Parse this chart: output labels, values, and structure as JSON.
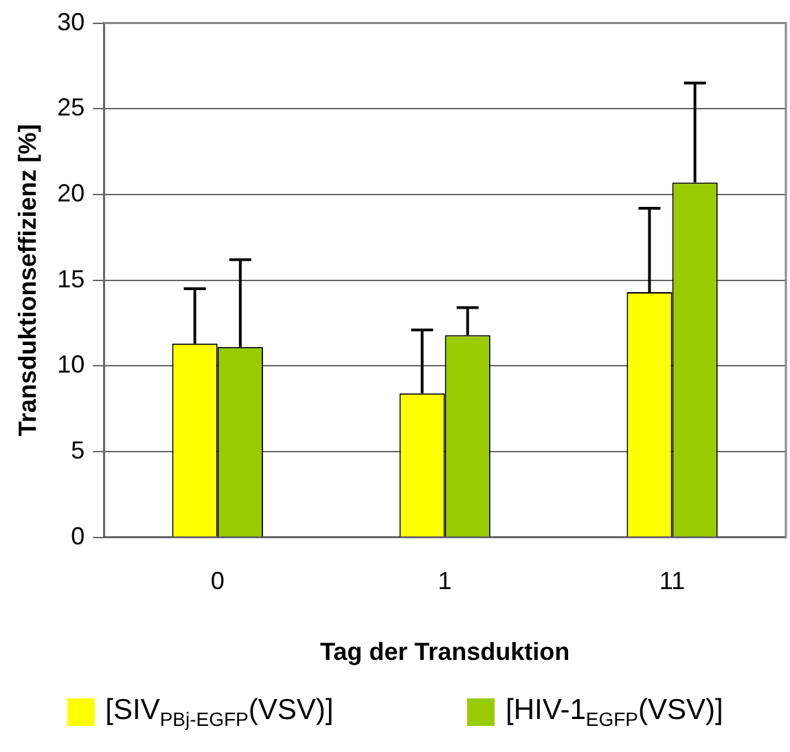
{
  "chart_data": {
    "type": "bar",
    "xlabel": "Tag der Transduktion",
    "ylabel": "Transduktionseffizienz [%]",
    "categories": [
      "0",
      "1",
      "11"
    ],
    "series": [
      {
        "name": "[SIV$_{PBj-EGFP}$(VSV)]",
        "color": "#ffff00",
        "values": [
          11.3,
          8.4,
          14.3
        ],
        "errors": [
          [
            11.3,
            14.5
          ],
          [
            8.4,
            12.1
          ],
          [
            14.3,
            19.2
          ]
        ]
      },
      {
        "name": "[HIV-1$_{EGFP}$(VSV)]",
        "color": "#99cc00",
        "values": [
          11.1,
          11.8,
          20.7
        ],
        "errors": [
          [
            11.1,
            16.2
          ],
          [
            11.8,
            13.4
          ],
          [
            20.7,
            26.5
          ]
        ]
      }
    ],
    "ylim": [
      0,
      30
    ],
    "yticks": [
      0,
      5,
      10,
      15,
      20,
      25,
      30
    ],
    "grid": "y",
    "legend": "bottom"
  }
}
